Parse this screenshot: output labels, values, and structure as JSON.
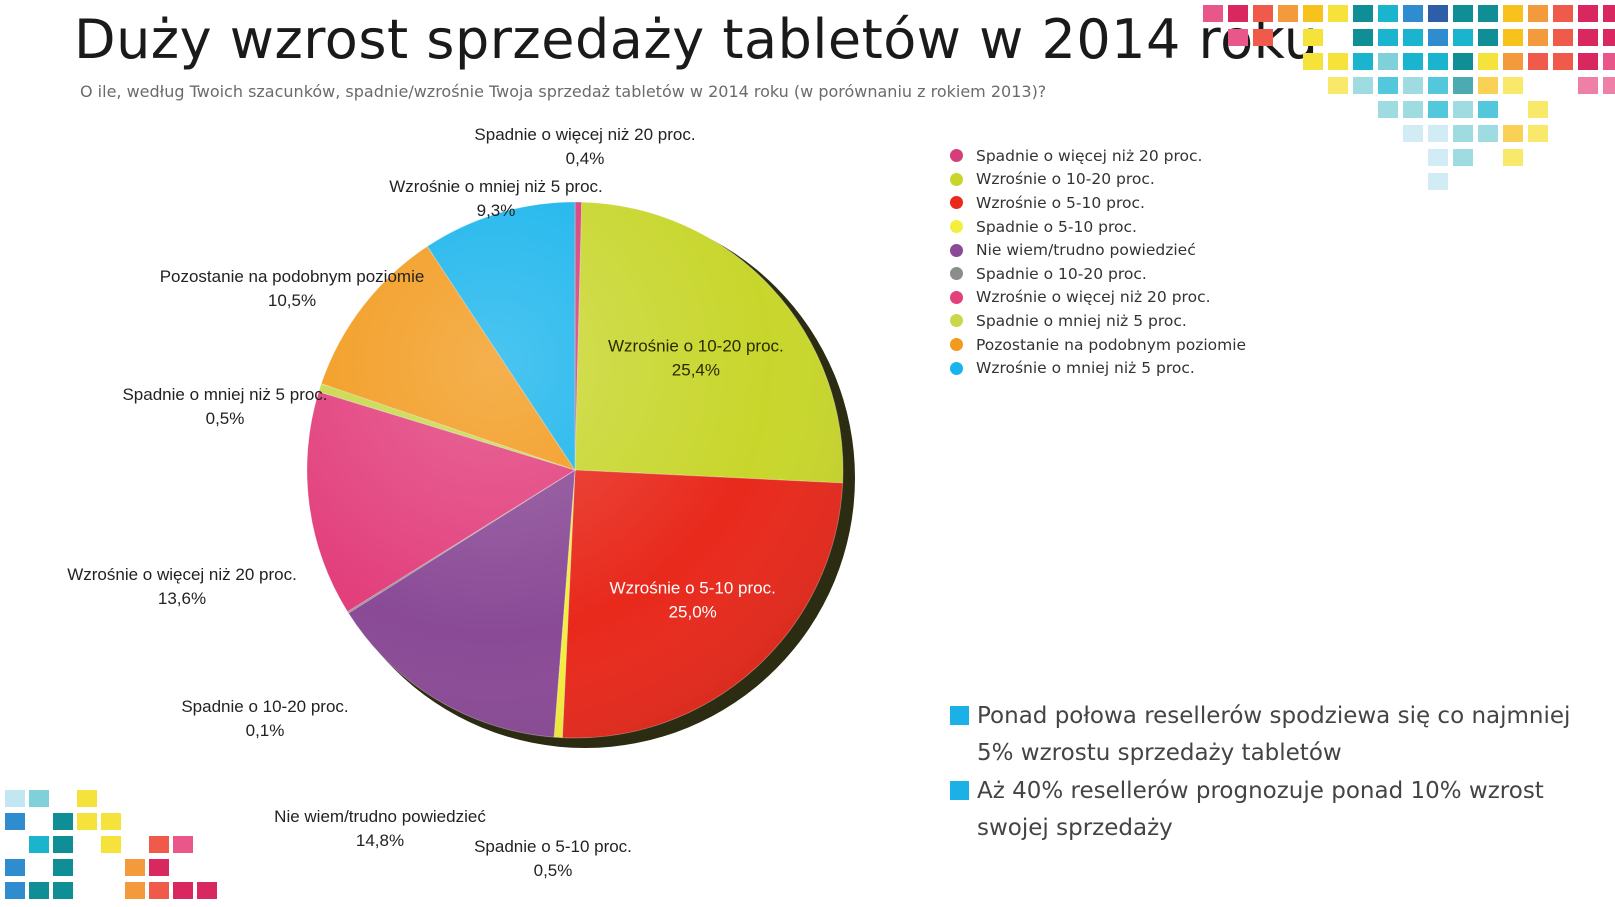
{
  "title": "Duży wzrost sprzedaży tabletów w 2014 roku",
  "subtitle": "O ile, według Twoich szacunków, spadnie/wzrośnie Twoja sprzedaż tabletów w 2014 roku (w porównaniu z rokiem 2013)?",
  "chart_data": {
    "type": "pie",
    "title": "Duży wzrost sprzedaży tabletów w 2014 roku",
    "legend_position": "right",
    "slices": [
      {
        "label": "Spadnie o więcej niż 20 proc.",
        "value": 0.4,
        "value_label": "0,4%",
        "color": "#d63e7a"
      },
      {
        "label": "Wzrośnie o 10-20 proc.",
        "value": 25.4,
        "value_label": "25,4%",
        "color": "#c8d62c"
      },
      {
        "label": "Wzrośnie o 5-10 proc.",
        "value": 25.0,
        "value_label": "25,0%",
        "color": "#e8291c"
      },
      {
        "label": "Spadnie o 5-10 proc.",
        "value": 0.5,
        "value_label": "0,5%",
        "color": "#f4ee3c"
      },
      {
        "label": "Nie wiem/trudno powiedzieć",
        "value": 14.8,
        "value_label": "14,8%",
        "color": "#8a4a96"
      },
      {
        "label": "Spadnie o 10-20 proc.",
        "value": 0.1,
        "value_label": "0,1%",
        "color": "#8c8c8c"
      },
      {
        "label": "Wzrośnie o więcej niż 20 proc.",
        "value": 13.6,
        "value_label": "13,6%",
        "color": "#e23f7c"
      },
      {
        "label": "Spadnie o mniej niż 5 proc.",
        "value": 0.5,
        "value_label": "0,5%",
        "color": "#c8d84a"
      },
      {
        "label": "Pozostanie na podobnym poziomie",
        "value": 10.5,
        "value_label": "10,5%",
        "color": "#f29a1c"
      },
      {
        "label": "Wzrośnie o mniej niż 5 proc.",
        "value": 9.3,
        "value_label": "9,3%",
        "color": "#18b4ec"
      }
    ]
  },
  "notes": [
    "Ponad połowa resellerów spodziewa się co najmniej 5% wzrostu sprzedaży tabletów",
    "Aż 40% resellerów prognozuje ponad 10% wzrost swojej sprzedaży"
  ],
  "colors": {
    "note_marker": "#1bb1e6",
    "mosaic_palette": [
      "#e8568a",
      "#d8285f",
      "#ef5a4a",
      "#f39a3c",
      "#f7c21c",
      "#f5e23a",
      "#0f8f95",
      "#1ab4cf",
      "#2e8ccf",
      "#2e5ea8",
      "#7fd0d8",
      "#c2e6f2"
    ]
  }
}
